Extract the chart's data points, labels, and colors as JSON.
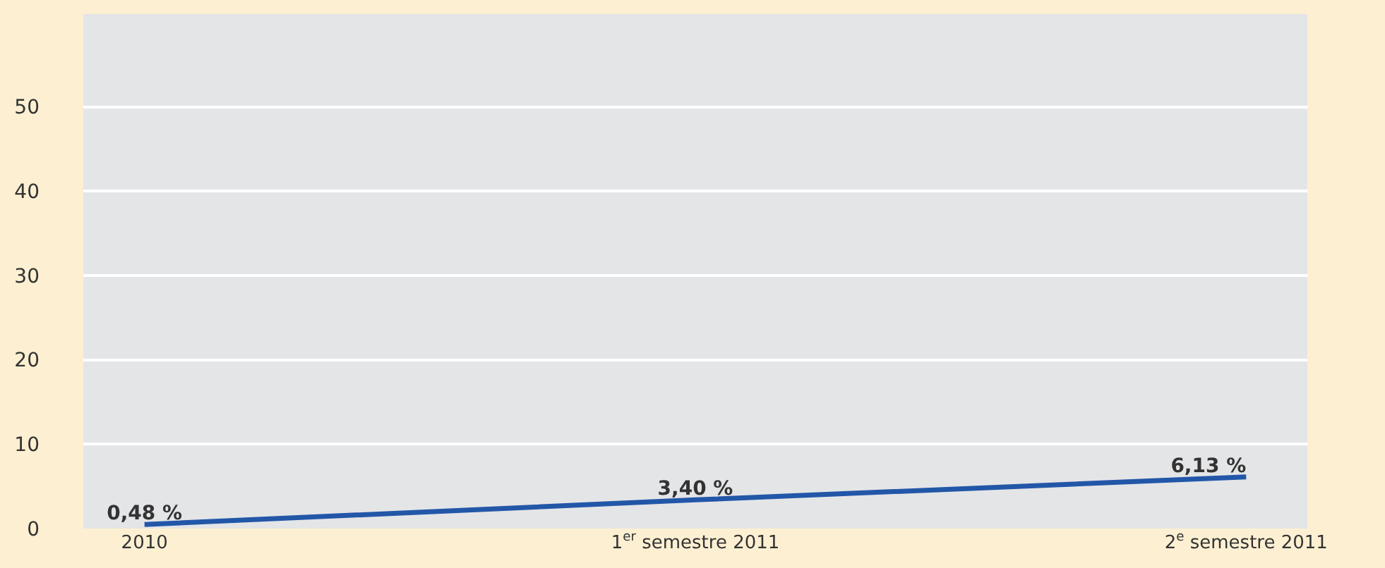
{
  "chart_data": {
    "type": "line",
    "categories": [
      "2010",
      "1$^{er}$ semestre 2011",
      "2$^{e}$ semestre 2011"
    ],
    "series": [
      {
        "color": "#2257a8",
        "values": [
          0.48,
          3.4,
          6.13
        ],
        "value_labels": [
          "0,48 %",
          "3,40 %",
          "6,13 %"
        ]
      }
    ],
    "ylim": [
      0,
      61
    ],
    "yticks": [
      0,
      10,
      20,
      30,
      40,
      50
    ],
    "grid": "y",
    "marker": "none",
    "line_style": "solid"
  }
}
